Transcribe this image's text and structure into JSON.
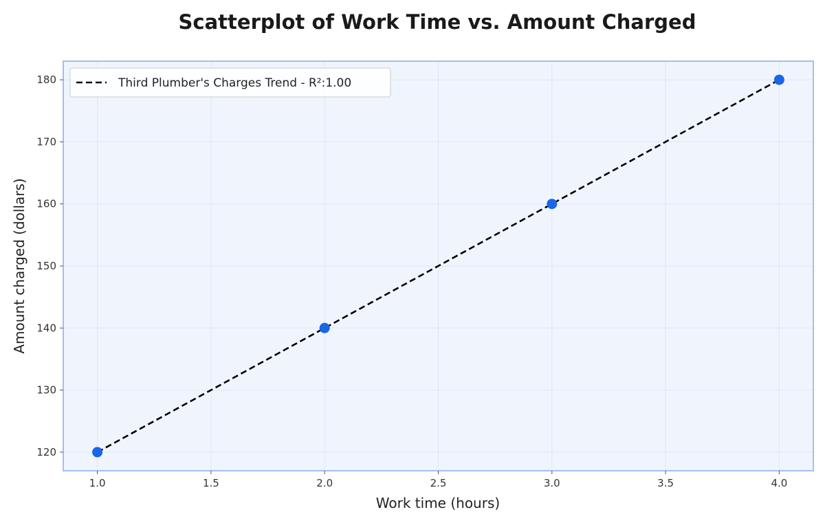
{
  "chart_data": {
    "type": "scatter",
    "title": "Scatterplot of Work Time vs. Amount Charged",
    "xlabel": "Work time (hours)",
    "ylabel": "Amount charged (dollars)",
    "xlim": [
      0.85,
      4.15
    ],
    "ylim": [
      117,
      183
    ],
    "x_ticks": [
      1.0,
      1.5,
      2.0,
      2.5,
      3.0,
      3.5,
      4.0
    ],
    "x_tick_labels": [
      "1.0",
      "1.5",
      "2.0",
      "2.5",
      "3.0",
      "3.5",
      "4.0"
    ],
    "y_ticks": [
      120,
      130,
      140,
      150,
      160,
      170,
      180
    ],
    "y_tick_labels": [
      "120",
      "130",
      "140",
      "150",
      "160",
      "170",
      "180"
    ],
    "grid": true,
    "legend_position": "top-left",
    "series": [
      {
        "kind": "points",
        "x": [
          1.0,
          2.0,
          3.0,
          4.0
        ],
        "y": [
          120,
          140,
          160,
          180
        ],
        "color": "#1a66e6"
      },
      {
        "kind": "trend-line",
        "name": "Third Plumber's Charges Trend - R²:1.00",
        "x": [
          1.0,
          4.0
        ],
        "y": [
          120,
          180
        ],
        "color": "#000000",
        "style": "dashed"
      }
    ],
    "colors": {
      "plot_background": "#f0f5fd",
      "plot_border": "#a3bff0",
      "grid": "#dde6f8"
    }
  }
}
